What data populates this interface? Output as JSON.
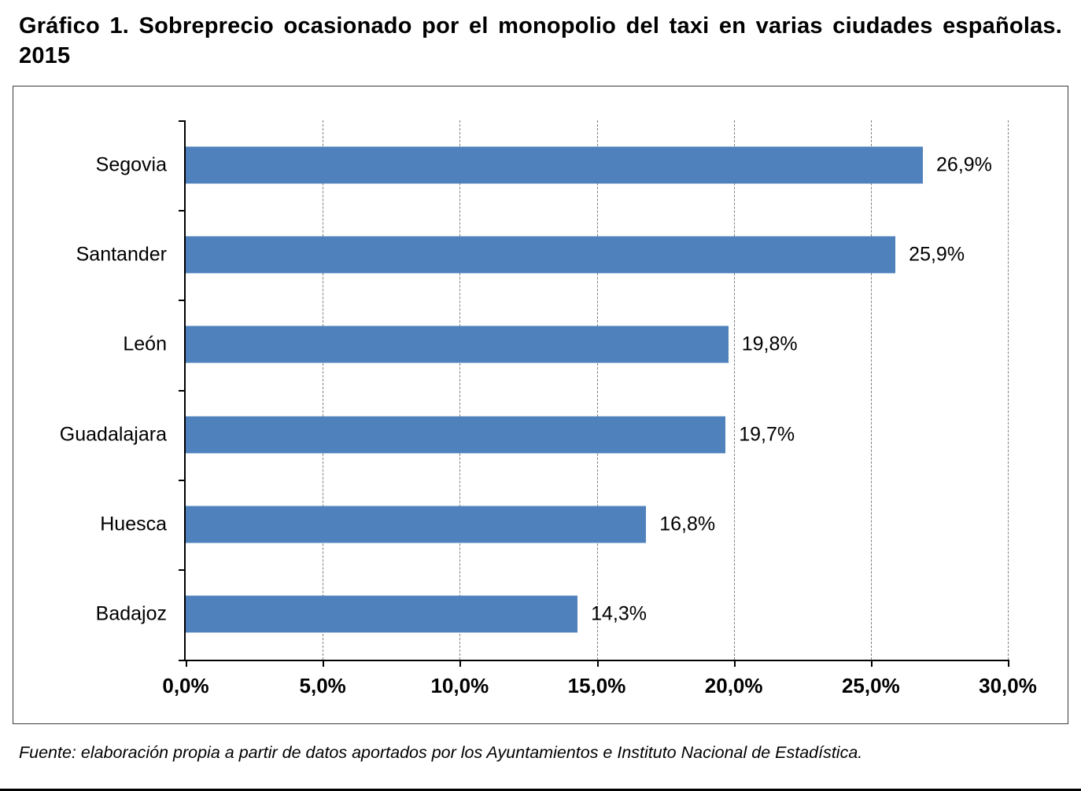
{
  "title": "Gráfico 1. Sobreprecio ocasionado por el monopolio del taxi en varias ciudades españolas. 2015",
  "source": "Fuente: elaboración propia a partir de datos aportados por los Ayuntamientos e Instituto Nacional de Estadística.",
  "chart_data": {
    "type": "bar",
    "orientation": "horizontal",
    "title": "Gráfico 1. Sobreprecio ocasionado por el monopolio del taxi en varias ciudades españolas. 2015",
    "categories": [
      "Segovia",
      "Santander",
      "León",
      "Guadalajara",
      "Huesca",
      "Badajoz"
    ],
    "values": [
      26.9,
      25.9,
      19.8,
      19.7,
      16.8,
      14.3
    ],
    "value_labels": [
      "26,9%",
      "25,9%",
      "19,8%",
      "19,7%",
      "16,8%",
      "14,3%"
    ],
    "x_ticks": [
      "0,0%",
      "5,0%",
      "10,0%",
      "15,0%",
      "20,0%",
      "25,0%",
      "30,0%"
    ],
    "xlim": [
      0,
      30
    ],
    "xlabel": "",
    "ylabel": "",
    "grid": true,
    "grid_style": "dashed-vertical",
    "legend": false,
    "bar_color": "#4F81BD"
  }
}
